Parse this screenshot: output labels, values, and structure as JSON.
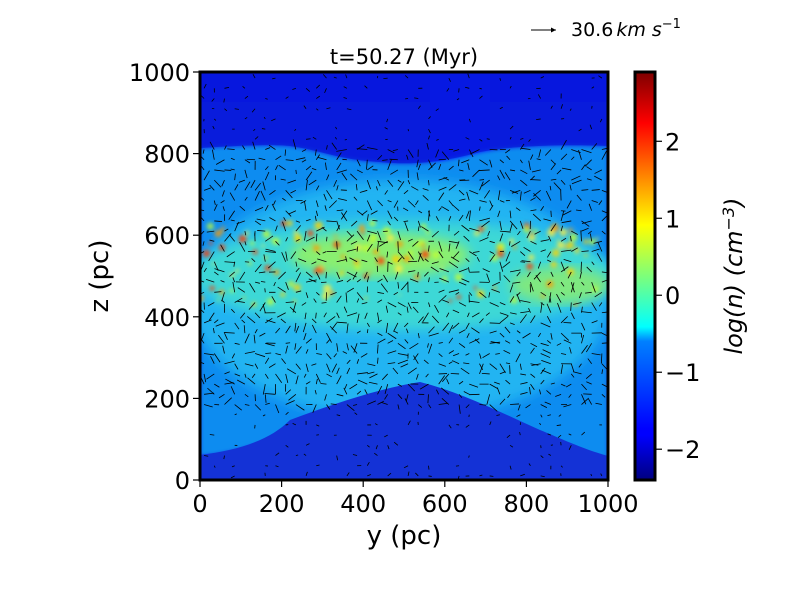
{
  "chart_data": {
    "type": "heatmap",
    "title": "t=50.27 (Myr)",
    "xlabel": "y (pc)",
    "ylabel": "z (pc)",
    "xlim": [
      0,
      1000
    ],
    "ylim": [
      0,
      1000
    ],
    "xticks": [
      "0",
      "200",
      "400",
      "600",
      "800",
      "1000"
    ],
    "xtick_values": [
      0,
      200,
      400,
      600,
      800,
      1000
    ],
    "yticks": [
      "0",
      "200",
      "400",
      "600",
      "800",
      "1000"
    ],
    "ytick_values": [
      0,
      200,
      400,
      600,
      800,
      1000
    ],
    "colorbar": {
      "label": "log(n) (cm^-3)",
      "label_prefix": "log(n) (cm",
      "label_exp": "−3",
      "label_suffix": ")",
      "range": [
        -2.4,
        2.9
      ],
      "ticks": [
        "−2",
        "−1",
        "0",
        "1",
        "2"
      ],
      "tick_values": [
        -2,
        -1,
        0,
        1,
        2
      ],
      "colormap": "jet"
    },
    "quiver_key": {
      "label": "30.6",
      "units": "km s",
      "units_exp": "−1"
    },
    "field_description": "Density slice: dense disk (log n 0 to 2.5) around z=400-650 pc, diffuse halo (log n ≈ -1) extending to ~800 pc in upper region and ~200 pc at base, low-density (log n ≈ -2) regions at top and bottom; overlaid velocity arrows."
  }
}
